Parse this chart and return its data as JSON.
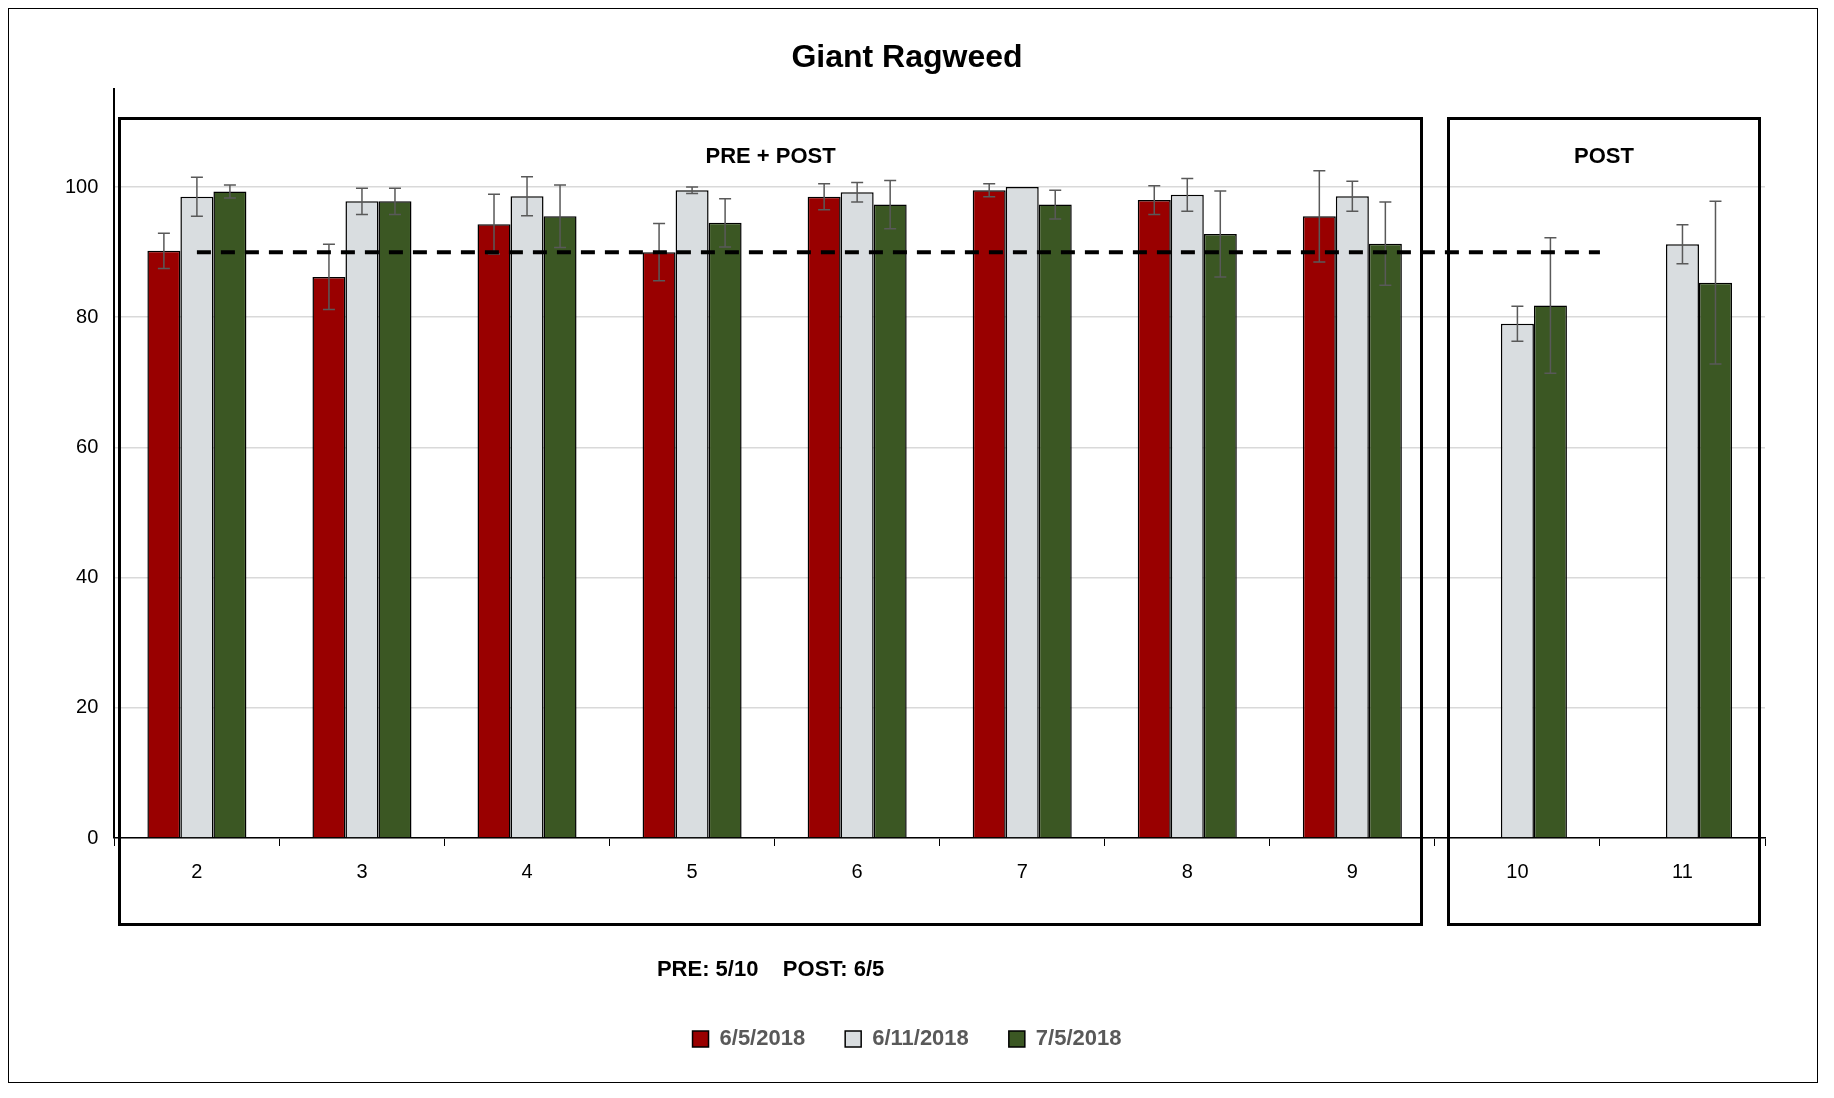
{
  "chart_data": {
    "type": "bar",
    "title": "Giant Ragweed",
    "categories": [
      "2",
      "3",
      "4",
      "5",
      "6",
      "7",
      "8",
      "9",
      "10",
      "11"
    ],
    "series": [
      {
        "name": "6/5/2018",
        "color": "#990000",
        "values": [
          90.2,
          86.2,
          94.3,
          90,
          98.5,
          99.5,
          98,
          95.5,
          null,
          null
        ],
        "errors": [
          2.7,
          5,
          4.6,
          4.4,
          2,
          1,
          2.2,
          7,
          null,
          null
        ]
      },
      {
        "name": "6/11/2018",
        "color": "#d9dde0",
        "values": [
          98.5,
          97.8,
          98.6,
          99.5,
          99.2,
          100,
          98.8,
          98.6,
          79,
          91.2
        ],
        "errors": [
          3,
          2,
          3,
          0.5,
          1.5,
          null,
          2.5,
          2.3,
          2.7,
          3
        ]
      },
      {
        "name": "7/5/2018",
        "color": "#3b5723",
        "values": [
          99.3,
          97.8,
          95.5,
          94.5,
          97.3,
          97.3,
          92.8,
          91.3,
          81.8,
          85.3
        ],
        "errors": [
          1,
          2,
          4.8,
          3.7,
          3.7,
          2.2,
          6.6,
          6.4,
          10.4,
          12.5
        ]
      }
    ],
    "ylim": [
      0,
      115
    ],
    "yticks": [
      0,
      20,
      40,
      60,
      80,
      100
    ],
    "grid": "y",
    "legend": "bottom",
    "ref_lines": [
      {
        "axis": "y",
        "value": 90,
        "line_style": "dashed",
        "color": "#000000"
      }
    ],
    "annotations": [
      "PRE + POST",
      "POST",
      "PRE: 5/10    POST: 6/5"
    ]
  }
}
